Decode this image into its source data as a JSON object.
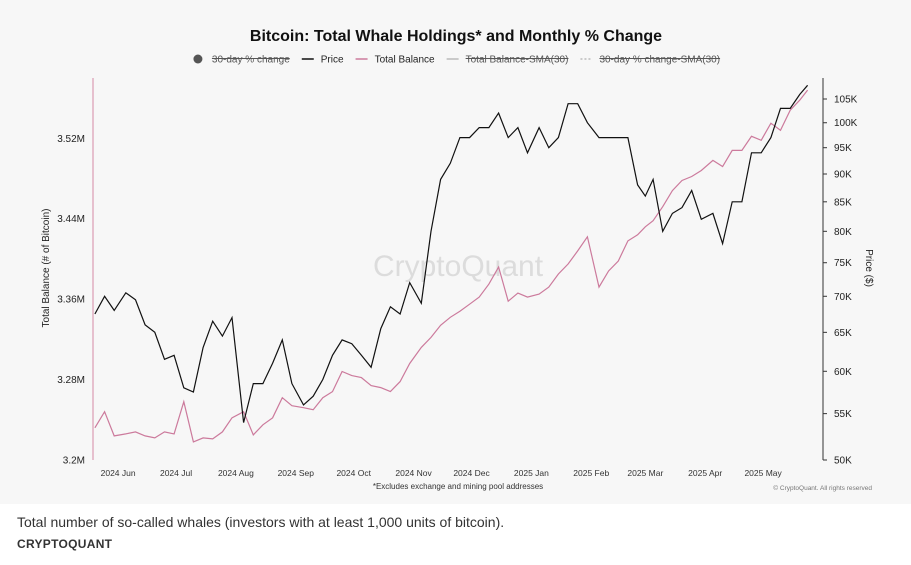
{
  "chart_data": {
    "type": "line",
    "title": "Bitcoin: Total Whale Holdings* and Monthly % Change",
    "ylabel_left": "Total Balance (# of Bitcoin)",
    "ylabel_right": "Price ($)",
    "footnote": "*Excludes exchange and mining pool addresses",
    "copyright": "© CryptoQuant. All rights reserved",
    "watermark": "CryptoQuant",
    "x_ticks": [
      "2024 Jun",
      "2024 Jul",
      "2024 Aug",
      "2024 Sep",
      "2024 Oct",
      "2024 Nov",
      "2024 Dec",
      "2025 Jan",
      "2025 Feb",
      "2025 Mar",
      "2025 Apr",
      "2025 May"
    ],
    "x_tick_dates": [
      "2024-06-01",
      "2024-07-01",
      "2024-08-01",
      "2024-09-01",
      "2024-10-01",
      "2024-11-01",
      "2024-12-01",
      "2025-01-01",
      "2025-02-01",
      "2025-03-01",
      "2025-04-01",
      "2025-05-01"
    ],
    "x_range": [
      "2024-05-19",
      "2025-06-01"
    ],
    "y_left": {
      "ticks": [
        "3.2M",
        "3.28M",
        "3.36M",
        "3.44M",
        "3.52M"
      ],
      "tick_values": [
        3.2,
        3.28,
        3.36,
        3.44,
        3.52
      ],
      "unit": "M",
      "range": [
        3.2,
        3.58
      ]
    },
    "y_right": {
      "ticks": [
        "50K",
        "55K",
        "60K",
        "65K",
        "70K",
        "75K",
        "80K",
        "85K",
        "90K",
        "95K",
        "100K",
        "105K"
      ],
      "tick_values": [
        50,
        55,
        60,
        65,
        70,
        75,
        80,
        85,
        90,
        95,
        100,
        105
      ],
      "unit": "K",
      "range": [
        50,
        105
      ],
      "scale": "log"
    },
    "legend": [
      {
        "label": "30-day % change",
        "marker": "dot",
        "color": "#555555",
        "hidden": true
      },
      {
        "label": "Price",
        "marker": "line",
        "color": "#111111",
        "hidden": false
      },
      {
        "label": "Total Balance",
        "marker": "line",
        "color": "#cc7a9c",
        "hidden": false
      },
      {
        "label": "Total Balance-SMA(30)",
        "marker": "line",
        "color": "#bbbbbb",
        "hidden": true
      },
      {
        "label": "30-day % change-SMA(30)",
        "marker": "dashed",
        "color": "#bbbbbb",
        "hidden": true
      }
    ],
    "legend_position": "top-center",
    "grid": false,
    "series": [
      {
        "name": "Price",
        "axis": "right",
        "color": "#111111",
        "x": [
          "2024-05-20",
          "2024-05-25",
          "2024-05-30",
          "2024-06-05",
          "2024-06-10",
          "2024-06-15",
          "2024-06-20",
          "2024-06-25",
          "2024-06-30",
          "2024-07-05",
          "2024-07-10",
          "2024-07-15",
          "2024-07-20",
          "2024-07-25",
          "2024-07-30",
          "2024-08-05",
          "2024-08-10",
          "2024-08-15",
          "2024-08-20",
          "2024-08-25",
          "2024-08-30",
          "2024-09-05",
          "2024-09-10",
          "2024-09-15",
          "2024-09-20",
          "2024-09-25",
          "2024-09-30",
          "2024-10-05",
          "2024-10-10",
          "2024-10-15",
          "2024-10-20",
          "2024-10-25",
          "2024-10-30",
          "2024-11-05",
          "2024-11-10",
          "2024-11-15",
          "2024-11-20",
          "2024-11-25",
          "2024-11-30",
          "2024-12-05",
          "2024-12-10",
          "2024-12-15",
          "2024-12-20",
          "2024-12-25",
          "2024-12-30",
          "2025-01-05",
          "2025-01-10",
          "2025-01-15",
          "2025-01-20",
          "2025-01-25",
          "2025-01-30",
          "2025-02-05",
          "2025-02-10",
          "2025-02-15",
          "2025-02-20",
          "2025-02-25",
          "2025-03-01",
          "2025-03-05",
          "2025-03-10",
          "2025-03-15",
          "2025-03-20",
          "2025-03-25",
          "2025-03-30",
          "2025-04-05",
          "2025-04-10",
          "2025-04-15",
          "2025-04-20",
          "2025-04-25",
          "2025-04-30",
          "2025-05-05",
          "2025-05-10",
          "2025-05-15",
          "2025-05-20",
          "2025-05-24"
        ],
        "values": [
          67.5,
          70,
          68,
          70.5,
          69.5,
          66,
          65,
          61.5,
          62,
          58,
          57.5,
          63,
          66.5,
          64.5,
          67,
          54,
          58.5,
          58.5,
          61,
          64,
          58.5,
          56,
          57,
          59,
          62,
          64,
          63.5,
          62,
          60.5,
          65.5,
          68.5,
          67.5,
          72,
          69,
          80,
          89,
          92,
          97,
          97,
          99,
          99,
          102,
          97,
          99,
          94,
          99,
          95,
          97,
          104,
          104,
          100,
          97,
          97,
          97,
          97,
          88,
          86,
          89,
          80,
          83,
          84,
          87,
          82,
          83,
          78,
          85,
          85,
          94,
          94,
          97,
          103,
          103,
          106,
          108
        ]
      },
      {
        "name": "Total Balance",
        "axis": "left",
        "color": "#cc7a9c",
        "x": [
          "2024-05-20",
          "2024-05-25",
          "2024-05-30",
          "2024-06-05",
          "2024-06-10",
          "2024-06-15",
          "2024-06-20",
          "2024-06-25",
          "2024-06-30",
          "2024-07-05",
          "2024-07-10",
          "2024-07-15",
          "2024-07-20",
          "2024-07-25",
          "2024-07-30",
          "2024-08-05",
          "2024-08-10",
          "2024-08-15",
          "2024-08-20",
          "2024-08-25",
          "2024-08-30",
          "2024-09-05",
          "2024-09-10",
          "2024-09-15",
          "2024-09-20",
          "2024-09-25",
          "2024-09-30",
          "2024-10-05",
          "2024-10-10",
          "2024-10-15",
          "2024-10-20",
          "2024-10-25",
          "2024-10-30",
          "2024-11-05",
          "2024-11-10",
          "2024-11-15",
          "2024-11-20",
          "2024-11-25",
          "2024-11-30",
          "2024-12-05",
          "2024-12-10",
          "2024-12-15",
          "2024-12-20",
          "2024-12-25",
          "2024-12-30",
          "2025-01-05",
          "2025-01-10",
          "2025-01-15",
          "2025-01-20",
          "2025-01-25",
          "2025-01-30",
          "2025-02-05",
          "2025-02-10",
          "2025-02-15",
          "2025-02-20",
          "2025-02-25",
          "2025-03-01",
          "2025-03-05",
          "2025-03-10",
          "2025-03-15",
          "2025-03-20",
          "2025-03-25",
          "2025-03-30",
          "2025-04-05",
          "2025-04-10",
          "2025-04-15",
          "2025-04-20",
          "2025-04-25",
          "2025-04-30",
          "2025-05-05",
          "2025-05-10",
          "2025-05-15",
          "2025-05-20",
          "2025-05-24"
        ],
        "values": [
          3.232,
          3.248,
          3.224,
          3.226,
          3.228,
          3.224,
          3.222,
          3.228,
          3.226,
          3.258,
          3.218,
          3.222,
          3.221,
          3.228,
          3.242,
          3.248,
          3.225,
          3.235,
          3.242,
          3.262,
          3.254,
          3.252,
          3.25,
          3.262,
          3.268,
          3.288,
          3.284,
          3.282,
          3.274,
          3.272,
          3.268,
          3.278,
          3.296,
          3.312,
          3.322,
          3.334,
          3.342,
          3.348,
          3.355,
          3.362,
          3.375,
          3.392,
          3.358,
          3.366,
          3.362,
          3.365,
          3.372,
          3.385,
          3.395,
          3.408,
          3.422,
          3.372,
          3.388,
          3.398,
          3.418,
          3.424,
          3.432,
          3.438,
          3.452,
          3.468,
          3.478,
          3.482,
          3.488,
          3.498,
          3.492,
          3.508,
          3.508,
          3.522,
          3.518,
          3.535,
          3.528,
          3.548,
          3.558,
          3.568
        ]
      }
    ]
  },
  "caption": "Total number of so-called whales (investors with at least 1,000 units of bitcoin).",
  "credit": "CRYPTOQUANT"
}
